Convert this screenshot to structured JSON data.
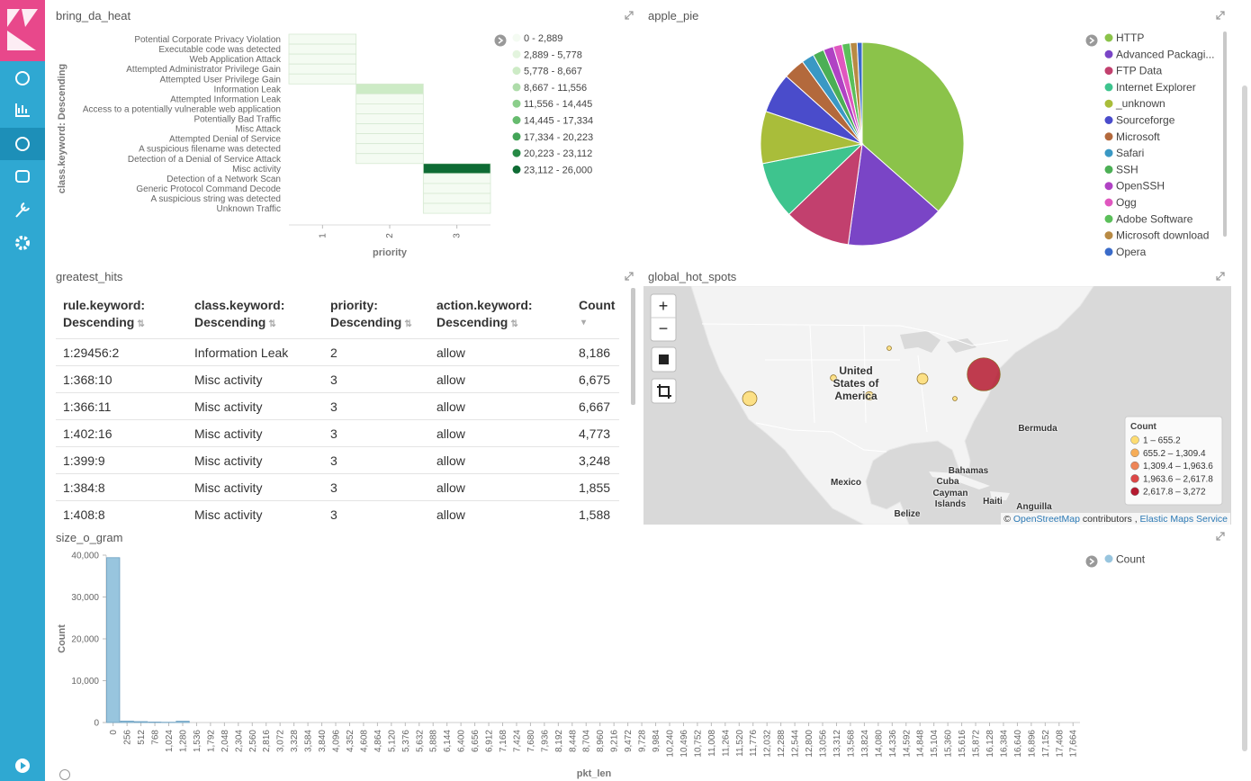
{
  "heatmap": {
    "type": "heatmap",
    "title": "bring_da_heat",
    "y_label": "class.keyword: Descending",
    "x_label": "priority",
    "xlim": [
      0.5,
      3.5
    ],
    "xticks": [
      1,
      2,
      3
    ],
    "rows": [
      {
        "label": "Potential Corporate Privacy Violation",
        "priority": 1,
        "count": 50
      },
      {
        "label": "Executable code was detected",
        "priority": 1,
        "count": 30
      },
      {
        "label": "Web Application Attack",
        "priority": 1,
        "count": 60
      },
      {
        "label": "Attempted Administrator Privilege Gain",
        "priority": 1,
        "count": 40
      },
      {
        "label": "Attempted User Privilege Gain",
        "priority": 1,
        "count": 20
      },
      {
        "label": "Information Leak",
        "priority": 2,
        "count": 8186
      },
      {
        "label": "Attempted Information Leak",
        "priority": 2,
        "count": 300
      },
      {
        "label": "Access to a potentially vulnerable web application",
        "priority": 2,
        "count": 200
      },
      {
        "label": "Potentially Bad Traffic",
        "priority": 2,
        "count": 500
      },
      {
        "label": "Misc Attack",
        "priority": 2,
        "count": 400
      },
      {
        "label": "Attempted Denial of Service",
        "priority": 2,
        "count": 100
      },
      {
        "label": "A suspicious filename was detected",
        "priority": 2,
        "count": 50
      },
      {
        "label": "Detection of a Denial of Service Attack",
        "priority": 2,
        "count": 80
      },
      {
        "label": "Misc activity",
        "priority": 3,
        "count": 25500
      },
      {
        "label": "Detection of a Network Scan",
        "priority": 3,
        "count": 900
      },
      {
        "label": "Generic Protocol Command Decode",
        "priority": 3,
        "count": 600
      },
      {
        "label": "A suspicious string was detected",
        "priority": 3,
        "count": 300
      },
      {
        "label": "Unknown Traffic",
        "priority": 3,
        "count": 200
      }
    ],
    "legend": [
      {
        "label": "0 - 2,889",
        "from": 0,
        "to": 2889,
        "color": "#f4fbf2"
      },
      {
        "label": "2,889 - 5,778",
        "from": 2889,
        "to": 5778,
        "color": "#e3f4de"
      },
      {
        "label": "5,778 - 8,667",
        "from": 5778,
        "to": 8667,
        "color": "#cdebc6"
      },
      {
        "label": "8,667 - 11,556",
        "from": 8667,
        "to": 11556,
        "color": "#aedcaa"
      },
      {
        "label": "11,556 - 14,445",
        "from": 11556,
        "to": 14445,
        "color": "#8bce8b"
      },
      {
        "label": "14,445 - 17,334",
        "from": 14445,
        "to": 17334,
        "color": "#66bb6e"
      },
      {
        "label": "17,334 - 20,223",
        "from": 17334,
        "to": 20223,
        "color": "#43a457"
      },
      {
        "label": "20,223 - 23,112",
        "from": 20223,
        "to": 23112,
        "color": "#268a45"
      },
      {
        "label": "23,112 - 26,000",
        "from": 23112,
        "to": 26000,
        "color": "#0e6b34"
      }
    ]
  },
  "pie": {
    "type": "pie",
    "title": "apple_pie",
    "categories": [
      "HTTP",
      "Advanced Packagi...",
      "FTP Data",
      "Internet Explorer",
      "_unknown",
      "Sourceforge",
      "Microsoft",
      "Safari",
      "SSH",
      "OpenSSH",
      "Ogg",
      "Adobe Software",
      "Microsoft download",
      "Opera"
    ],
    "values": [
      36.5,
      15.7,
      10.6,
      9.1,
      8.3,
      6.4,
      3.4,
      2.0,
      1.8,
      1.6,
      1.4,
      1.3,
      1.1,
      0.8
    ],
    "colors": [
      "#8bc34a",
      "#7a45c6",
      "#c2406e",
      "#3ec48e",
      "#a9bd3a",
      "#4a4ccb",
      "#b3693c",
      "#3a98c4",
      "#4caf55",
      "#b042c4",
      "#e057bf",
      "#5bbf5a",
      "#b88a44",
      "#3a6bc9"
    ]
  },
  "table": {
    "title": "greatest_hits",
    "columns": [
      "rule.keyword: Descending",
      "class.keyword: Descending",
      "priority: Descending",
      "action.keyword: Descending",
      "Count"
    ],
    "rows": [
      [
        "1:29456:2",
        "Information Leak",
        2,
        "allow",
        "8,186"
      ],
      [
        "1:368:10",
        "Misc activity",
        3,
        "allow",
        "6,675"
      ],
      [
        "1:366:11",
        "Misc activity",
        3,
        "allow",
        "6,667"
      ],
      [
        "1:402:16",
        "Misc activity",
        3,
        "allow",
        "4,773"
      ],
      [
        "1:399:9",
        "Misc activity",
        3,
        "allow",
        "3,248"
      ],
      [
        "1:384:8",
        "Misc activity",
        3,
        "allow",
        "1,855"
      ],
      [
        "1:408:8",
        "Misc activity",
        3,
        "allow",
        "1,588"
      ]
    ]
  },
  "map": {
    "type": "map",
    "title": "global_hot_spots",
    "controls": [
      "+",
      "−"
    ],
    "places": [
      "United States of America",
      "Bermuda",
      "Bahamas",
      "Cuba",
      "Mexico",
      "Cayman Islands",
      "Haiti",
      "Anguilla",
      "Belize"
    ],
    "legend_title": "Count",
    "legend": [
      {
        "label": "1 – 655.2",
        "from": 1,
        "to": 655.2,
        "color": "#fddc72"
      },
      {
        "label": "655.2 – 1,309.4",
        "from": 655.2,
        "to": 1309.4,
        "color": "#f6ad58"
      },
      {
        "label": "1,309.4 – 1,963.6",
        "from": 1309.4,
        "to": 1963.6,
        "color": "#ee8557"
      },
      {
        "label": "1,963.6 – 2,617.8",
        "from": 1963.6,
        "to": 2617.8,
        "color": "#dc4747"
      },
      {
        "label": "2,617.8 – 3,272",
        "from": 2617.8,
        "to": 3272,
        "color": "#b51a30"
      }
    ],
    "points": [
      480,
      3200,
      230,
      120,
      40,
      10,
      10
    ],
    "attribution": [
      "©",
      "OpenStreetMap",
      "contributors ,",
      "Elastic Maps Service"
    ]
  },
  "histogram": {
    "type": "histogram",
    "title": "size_o_gram",
    "x_label": "pkt_len",
    "y_label": "Count",
    "series_name": "Count",
    "color": "#98c5de",
    "bins": [
      0,
      256,
      512,
      768,
      1024,
      1280,
      1536
    ],
    "values": [
      39400,
      350,
      220,
      110,
      60,
      320
    ],
    "ylim": [
      0,
      40000
    ],
    "yticks": [
      0,
      {
        "value": 10000,
        "label": "10,000"
      },
      {
        "value": 20000,
        "label": "20,000"
      },
      {
        "value": 30000,
        "label": "30,000"
      },
      {
        "value": 40000,
        "label": "40,000"
      }
    ],
    "xlim": [
      0,
      17920
    ],
    "xticks": [
      0,
      256,
      512,
      768,
      {
        "value": 1024,
        "label": "1,024"
      },
      {
        "value": 1280,
        "label": "1,280"
      },
      {
        "value": 1536,
        "label": "1,536"
      },
      {
        "value": 1792,
        "label": "1,792"
      },
      {
        "value": 2048,
        "label": "2,048"
      },
      {
        "value": 2304,
        "label": "2,304"
      },
      {
        "value": 2560,
        "label": "2,560"
      },
      {
        "value": 2816,
        "label": "2,816"
      },
      {
        "value": 3072,
        "label": "3,072"
      },
      {
        "value": 3328,
        "label": "3,328"
      },
      {
        "value": 3584,
        "label": "3,584"
      },
      {
        "value": 3840,
        "label": "3,840"
      },
      {
        "value": 4096,
        "label": "4,096"
      },
      {
        "value": 4352,
        "label": "4,352"
      },
      {
        "value": 4608,
        "label": "4,608"
      },
      {
        "value": 4864,
        "label": "4,864"
      },
      {
        "value": 5120,
        "label": "5,120"
      },
      {
        "value": 5376,
        "label": "5,376"
      },
      {
        "value": 5632,
        "label": "5,632"
      },
      {
        "value": 5888,
        "label": "5,888"
      },
      {
        "value": 6144,
        "label": "6,144"
      },
      {
        "value": 6400,
        "label": "6,400"
      },
      {
        "value": 6656,
        "label": "6,656"
      },
      {
        "value": 6912,
        "label": "6,912"
      },
      {
        "value": 7168,
        "label": "7,168"
      },
      {
        "value": 7424,
        "label": "7,424"
      },
      {
        "value": 7680,
        "label": "7,680"
      },
      {
        "value": 7936,
        "label": "7,936"
      },
      {
        "value": 8192,
        "label": "8,192"
      },
      {
        "value": 8448,
        "label": "8,448"
      },
      {
        "value": 8704,
        "label": "8,704"
      },
      {
        "value": 8960,
        "label": "8,960"
      },
      {
        "value": 9216,
        "label": "9,216"
      },
      {
        "value": 9472,
        "label": "9,472"
      },
      {
        "value": 9728,
        "label": "9,728"
      },
      {
        "value": 9984,
        "label": "9,984"
      },
      {
        "value": 10240,
        "label": "10,240"
      },
      {
        "value": 10496,
        "label": "10,496"
      },
      {
        "value": 10752,
        "label": "10,752"
      },
      {
        "value": 11008,
        "label": "11,008"
      },
      {
        "value": 11264,
        "label": "11,264"
      },
      {
        "value": 11520,
        "label": "11,520"
      },
      {
        "value": 11776,
        "label": "11,776"
      },
      {
        "value": 12032,
        "label": "12,032"
      },
      {
        "value": 12288,
        "label": "12,288"
      },
      {
        "value": 12544,
        "label": "12,544"
      },
      {
        "value": 12800,
        "label": "12,800"
      },
      {
        "value": 13056,
        "label": "13,056"
      },
      {
        "value": 13312,
        "label": "13,312"
      },
      {
        "value": 13568,
        "label": "13,568"
      },
      {
        "value": 13824,
        "label": "13,824"
      },
      {
        "value": 14080,
        "label": "14,080"
      },
      {
        "value": 14336,
        "label": "14,336"
      },
      {
        "value": 14592,
        "label": "14,592"
      },
      {
        "value": 14848,
        "label": "14,848"
      },
      {
        "value": 15104,
        "label": "15,104"
      },
      {
        "value": 15360,
        "label": "15,360"
      },
      {
        "value": 15616,
        "label": "15,616"
      },
      {
        "value": 15872,
        "label": "15,872"
      },
      {
        "value": 16128,
        "label": "16,128"
      },
      {
        "value": 16384,
        "label": "16,384"
      },
      {
        "value": 16640,
        "label": "16,640"
      },
      {
        "value": 16896,
        "label": "16,896"
      },
      {
        "value": 17152,
        "label": "17,152"
      },
      {
        "value": 17408,
        "label": "17,408"
      },
      {
        "value": 17664,
        "label": "17,664"
      }
    ]
  }
}
